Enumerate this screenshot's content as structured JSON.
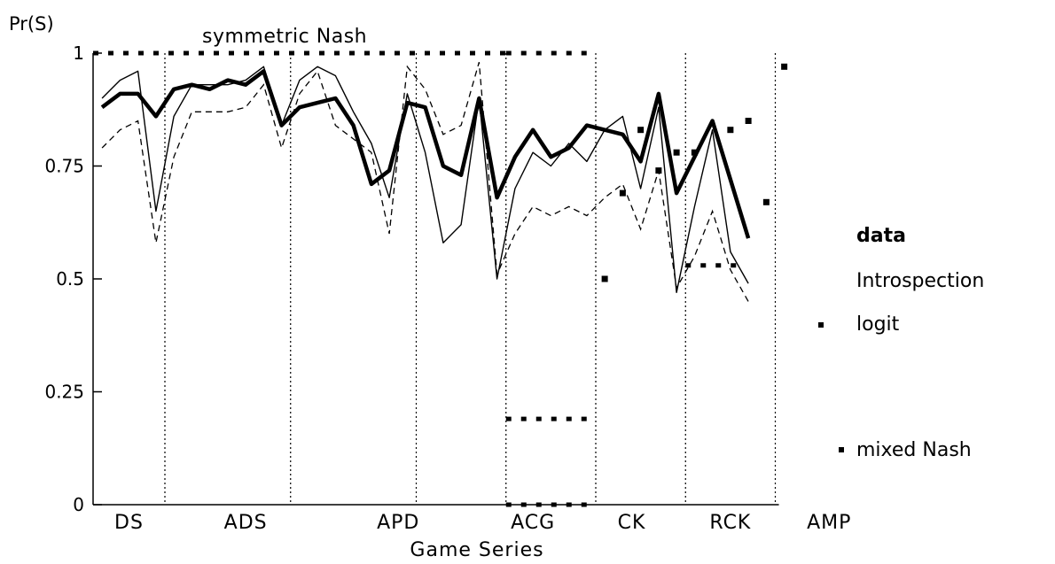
{
  "chart_data": {
    "type": "line",
    "ylabel": "Pr(S)",
    "xlabel": "Game Series",
    "ylim": [
      0,
      1
    ],
    "yticks": [
      "0",
      "0.25",
      "0.5",
      "0.75",
      "1"
    ],
    "ytick_values": [
      0,
      0.25,
      0.5,
      0.75,
      1
    ],
    "xlim": [
      0,
      48
    ],
    "groups": [
      {
        "label": "DS",
        "center": 2.0
      },
      {
        "label": "ADS",
        "center": 8.5
      },
      {
        "label": "APD",
        "center": 17.0
      },
      {
        "label": "ACG",
        "center": 24.5
      },
      {
        "label": "CK",
        "center": 30.0
      },
      {
        "label": "RCK",
        "center": 35.5
      },
      {
        "label": "AMP",
        "center": 41.0
      }
    ],
    "dividers": [
      4.0,
      11.0,
      18.0,
      23.0,
      28.0,
      33.0,
      38.0
    ],
    "annotation": "symmetric Nash",
    "series": [
      {
        "name": "data",
        "style": "thick",
        "x": [
          0.5,
          1.5,
          2.5,
          3.5,
          4.5,
          5.5,
          6.5,
          7.5,
          8.5,
          9.5,
          10.5,
          11.5,
          12.5,
          13.5,
          14.5,
          15.5,
          16.5,
          17.5,
          18.5,
          19.5,
          20.5,
          21.5,
          22.5,
          23.5,
          24.5,
          25.5,
          26.5,
          27.5,
          28.5,
          29.5,
          30.5,
          31.5,
          32.5,
          33.5,
          34.5,
          35.5,
          36.5,
          37.5,
          38.5,
          40.5,
          41.5,
          42.5
        ],
        "values": [
          0.88,
          0.91,
          0.91,
          0.86,
          0.92,
          0.93,
          0.92,
          0.94,
          0.93,
          0.96,
          0.84,
          0.88,
          0.89,
          0.9,
          0.84,
          0.71,
          0.74,
          0.89,
          0.88,
          0.75,
          0.73,
          0.9,
          0.68,
          0.77,
          0.83,
          0.77,
          0.79,
          0.84,
          0.83,
          0.82,
          0.76,
          0.91,
          0.69,
          0.77,
          0.85,
          0.72,
          0.59,
          null,
          null,
          null,
          null,
          null
        ]
      },
      {
        "name": "introspection",
        "style": "thin",
        "values": [
          0.9,
          0.94,
          0.96,
          0.65,
          0.86,
          0.93,
          0.93,
          0.93,
          0.94,
          0.97,
          0.84,
          0.94,
          0.97,
          0.95,
          0.87,
          0.8,
          0.68,
          0.91,
          0.78,
          0.58,
          0.62,
          0.9,
          0.5,
          0.7,
          0.78,
          0.75,
          0.8,
          0.76,
          0.83,
          0.86,
          0.7,
          0.88,
          0.47,
          0.66,
          0.83,
          0.56,
          0.49
        ]
      },
      {
        "name": "logit",
        "style": "dashed",
        "values": [
          0.79,
          0.83,
          0.85,
          0.58,
          0.77,
          0.87,
          0.87,
          0.87,
          0.88,
          0.93,
          0.79,
          0.91,
          0.96,
          0.84,
          0.81,
          0.78,
          0.6,
          0.97,
          0.92,
          0.82,
          0.84,
          0.98,
          0.51,
          0.6,
          0.66,
          0.64,
          0.66,
          0.64,
          0.68,
          0.71,
          0.61,
          0.74,
          0.48,
          0.55,
          0.65,
          0.52,
          0.45
        ]
      }
    ],
    "symmetric_nash": [
      {
        "x_start": 0.0,
        "x_end": 23.0,
        "value": 1.0
      },
      {
        "x_start": 23.0,
        "x_end": 28.0,
        "value": 1.0
      },
      {
        "x_start": 23.0,
        "x_end": 28.0,
        "value": 0.19
      },
      {
        "x_start": 23.0,
        "x_end": 28.0,
        "value": 0.0
      },
      {
        "x_start": 33.0,
        "x_end": 36.0,
        "value": 0.53
      }
    ],
    "mixed_nash_points": [
      {
        "x": 28.5,
        "value": 0.5
      },
      {
        "x": 29.5,
        "value": 0.69
      },
      {
        "x": 30.5,
        "value": 0.83
      },
      {
        "x": 31.5,
        "value": 0.74
      },
      {
        "x": 32.5,
        "value": 0.78
      },
      {
        "x": 33.5,
        "value": 0.78
      },
      {
        "x": 35.5,
        "value": 0.83
      },
      {
        "x": 36.5,
        "value": 0.85
      },
      {
        "x": 37.5,
        "value": 0.67
      },
      {
        "x": 38.5,
        "value": 0.97
      }
    ],
    "legend": {
      "data": "data",
      "introspection": "Introspection",
      "logit": "logit",
      "mixed_nash": "mixed Nash"
    }
  }
}
